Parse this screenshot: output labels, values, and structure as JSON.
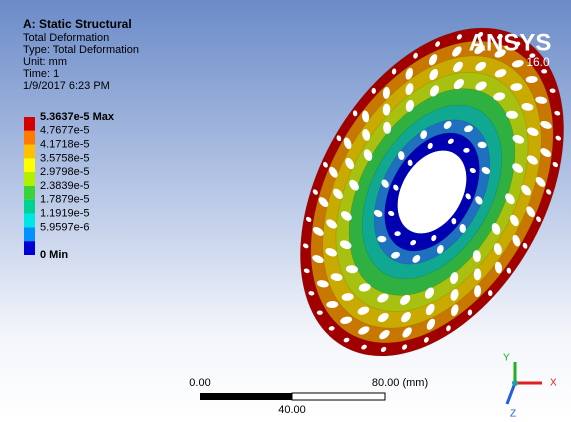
{
  "header": {
    "title": "A: Static Structural",
    "lines": [
      "Total Deformation",
      "Type: Total Deformation",
      "Unit: mm",
      "Time: 1",
      "1/9/2017 6:23 PM"
    ]
  },
  "legend": {
    "labels": [
      "5.3637e-5 Max",
      "4.7677e-5",
      "4.1718e-5",
      "3.5758e-5",
      "2.9798e-5",
      "2.3839e-5",
      "1.7879e-5",
      "1.1919e-5",
      "5.9597e-6",
      "0 Min"
    ],
    "colors": [
      "#d40000",
      "#ff7a00",
      "#ffc000",
      "#ffff00",
      "#b0f000",
      "#3cd23c",
      "#00d296",
      "#00e6e6",
      "#0090ff",
      "#0000d0"
    ]
  },
  "logo": {
    "name": "ANSYS",
    "version": "16.0"
  },
  "scale_bar": {
    "start": "0.00",
    "end": "80.00 (mm)",
    "middle": "40.00"
  },
  "triad": {
    "x": "X",
    "y": "Y",
    "z": "Z"
  }
}
